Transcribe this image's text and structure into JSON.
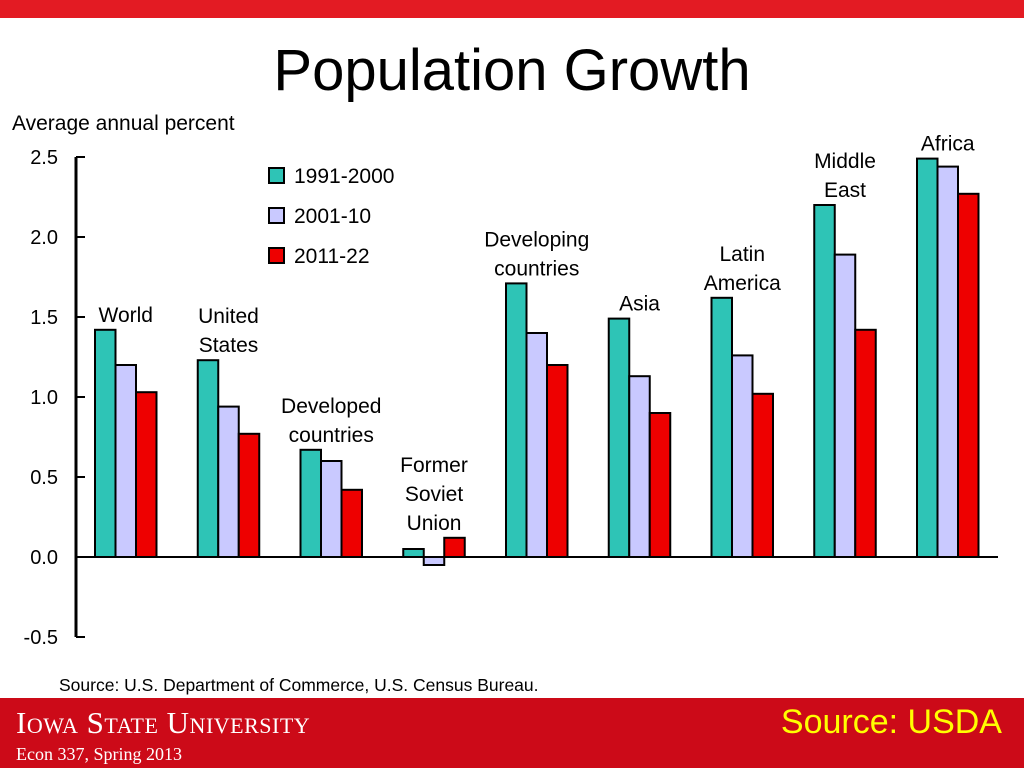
{
  "slide": {
    "title": "Population Growth",
    "source_note": "Source: USDA",
    "brand": "Iowa State University",
    "course": "Econ 337, Spring 2013"
  },
  "colors": {
    "top_bar": "#e31b23",
    "footer": "#cc0a18",
    "source_note": "#ffff00",
    "series": [
      "#2ec4b6",
      "#c9c9ff",
      "#ee0000"
    ]
  },
  "chart_data": {
    "type": "bar",
    "title": "",
    "ylabel": "Average annual percent",
    "ylim": [
      -0.5,
      2.5
    ],
    "yticks": [
      "2.5",
      "2.0",
      "1.5",
      "1.0",
      "0.5",
      "0.0",
      "-0.5"
    ],
    "grid": false,
    "legend_position": "top-left",
    "categories": [
      "World",
      "United States",
      "Developed countries",
      "Former Soviet Union",
      "Developing countries",
      "Asia",
      "Latin America",
      "Middle East",
      "Africa"
    ],
    "category_label_lines": [
      [
        "World"
      ],
      [
        "United",
        "States"
      ],
      [
        "Developed",
        "countries"
      ],
      [
        "Former",
        "Soviet",
        "Union"
      ],
      [
        "Developing",
        "countries"
      ],
      [
        "Asia"
      ],
      [
        "Latin",
        "America"
      ],
      [
        "Middle",
        "East"
      ],
      [
        "Africa"
      ]
    ],
    "series": [
      {
        "name": "1991-2000",
        "values": [
          1.42,
          1.23,
          0.67,
          0.05,
          1.71,
          1.49,
          1.62,
          2.2,
          2.49
        ]
      },
      {
        "name": "2001-10",
        "values": [
          1.2,
          0.94,
          0.6,
          -0.05,
          1.4,
          1.13,
          1.26,
          1.89,
          2.44
        ]
      },
      {
        "name": "2011-22",
        "values": [
          1.03,
          0.77,
          0.42,
          0.12,
          1.2,
          0.9,
          1.02,
          1.42,
          2.27
        ]
      }
    ],
    "source": "Source: U.S. Department of Commerce, U.S. Census Bureau."
  }
}
